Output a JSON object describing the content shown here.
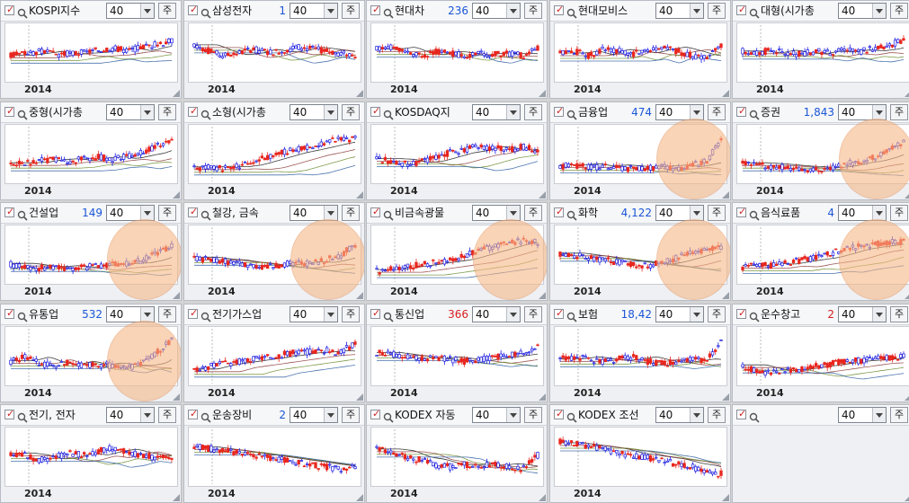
{
  "ui": {
    "select_value": "40",
    "button_label": "주",
    "year_label": "2014",
    "accent_red": "#e8261e",
    "accent_blue": "#1a1ae0",
    "highlight_fill": "#f6b887"
  },
  "panels": [
    {
      "name": "KOSPI지수",
      "value": "",
      "value_color": "#1a56d6",
      "highlight": false,
      "seed": 3,
      "trend": [
        0.45,
        0.5,
        0.55,
        0.48,
        0.5,
        0.52,
        0.58,
        0.62,
        0.55,
        0.65,
        0.7,
        0.78
      ]
    },
    {
      "name": "삼성전자",
      "value": "1",
      "value_color": "#1a56d6",
      "highlight": false,
      "seed": 7,
      "trend": [
        0.7,
        0.55,
        0.45,
        0.5,
        0.6,
        0.52,
        0.55,
        0.65,
        0.6,
        0.55,
        0.5,
        0.48
      ]
    },
    {
      "name": "현대차",
      "value": "236",
      "value_color": "#1a56d6",
      "highlight": false,
      "seed": 11,
      "trend": [
        0.6,
        0.65,
        0.5,
        0.45,
        0.55,
        0.5,
        0.45,
        0.5,
        0.48,
        0.5,
        0.45,
        0.6
      ]
    },
    {
      "name": "현대모비스",
      "value": "",
      "value_color": "#1a56d6",
      "highlight": false,
      "seed": 13,
      "trend": [
        0.5,
        0.55,
        0.45,
        0.6,
        0.55,
        0.5,
        0.6,
        0.65,
        0.55,
        0.45,
        0.4,
        0.65
      ]
    },
    {
      "name": "대형(시가총",
      "value": "",
      "value_color": "#1a56d6",
      "highlight": false,
      "seed": 17,
      "trend": [
        0.55,
        0.5,
        0.58,
        0.5,
        0.48,
        0.55,
        0.52,
        0.58,
        0.55,
        0.6,
        0.68,
        0.78
      ]
    },
    {
      "name": "중형(시가총",
      "value": "",
      "value_color": "#1a56d6",
      "highlight": false,
      "seed": 19,
      "trend": [
        0.3,
        0.32,
        0.38,
        0.4,
        0.35,
        0.42,
        0.45,
        0.4,
        0.48,
        0.55,
        0.7,
        0.8
      ]
    },
    {
      "name": "소형(시가총",
      "value": "",
      "value_color": "#1a56d6",
      "highlight": false,
      "seed": 23,
      "trend": [
        0.2,
        0.22,
        0.2,
        0.25,
        0.35,
        0.45,
        0.55,
        0.62,
        0.7,
        0.78,
        0.85,
        0.85
      ]
    },
    {
      "name": "KOSDAQ지",
      "value": "",
      "value_color": "#1a56d6",
      "highlight": false,
      "seed": 29,
      "trend": [
        0.4,
        0.38,
        0.3,
        0.35,
        0.45,
        0.55,
        0.6,
        0.7,
        0.65,
        0.6,
        0.68,
        0.6
      ]
    },
    {
      "name": "금융업",
      "value": "474",
      "value_color": "#1a56d6",
      "highlight": true,
      "seed": 31,
      "trend": [
        0.25,
        0.28,
        0.22,
        0.25,
        0.22,
        0.2,
        0.22,
        0.25,
        0.2,
        0.28,
        0.35,
        0.85
      ]
    },
    {
      "name": "증권",
      "value": "1,843",
      "value_color": "#1a56d6",
      "highlight": true,
      "seed": 37,
      "trend": [
        0.3,
        0.28,
        0.25,
        0.22,
        0.2,
        0.18,
        0.22,
        0.3,
        0.35,
        0.45,
        0.6,
        0.8
      ]
    },
    {
      "name": "건설업",
      "value": "149",
      "value_color": "#1a56d6",
      "highlight": true,
      "seed": 41,
      "trend": [
        0.3,
        0.25,
        0.22,
        0.25,
        0.2,
        0.25,
        0.28,
        0.3,
        0.32,
        0.4,
        0.55,
        0.7
      ]
    },
    {
      "name": "철강, 금속",
      "value": "",
      "value_color": "#1a56d6",
      "highlight": true,
      "seed": 43,
      "trend": [
        0.45,
        0.4,
        0.38,
        0.32,
        0.28,
        0.25,
        0.3,
        0.35,
        0.32,
        0.4,
        0.5,
        0.75
      ]
    },
    {
      "name": "비금속광물",
      "value": "",
      "value_color": "#1a56d6",
      "highlight": true,
      "seed": 47,
      "trend": [
        0.15,
        0.2,
        0.25,
        0.3,
        0.35,
        0.4,
        0.5,
        0.6,
        0.7,
        0.8,
        0.82,
        0.78
      ]
    },
    {
      "name": "화학",
      "value": "4,122",
      "value_color": "#1a56d6",
      "highlight": true,
      "seed": 53,
      "trend": [
        0.55,
        0.5,
        0.45,
        0.4,
        0.35,
        0.3,
        0.28,
        0.35,
        0.45,
        0.55,
        0.65,
        0.7
      ]
    },
    {
      "name": "음식료품",
      "value": "4",
      "value_color": "#1a56d6",
      "highlight": true,
      "seed": 59,
      "trend": [
        0.25,
        0.3,
        0.28,
        0.35,
        0.4,
        0.45,
        0.55,
        0.65,
        0.7,
        0.75,
        0.8,
        0.8
      ]
    },
    {
      "name": "유통업",
      "value": "532",
      "value_color": "#1a56d6",
      "highlight": true,
      "seed": 61,
      "trend": [
        0.4,
        0.5,
        0.35,
        0.3,
        0.4,
        0.3,
        0.35,
        0.3,
        0.28,
        0.35,
        0.6,
        0.85
      ]
    },
    {
      "name": "전기가스업",
      "value": "",
      "value_color": "#1a56d6",
      "highlight": false,
      "seed": 67,
      "trend": [
        0.2,
        0.3,
        0.35,
        0.4,
        0.45,
        0.5,
        0.55,
        0.6,
        0.62,
        0.65,
        0.6,
        0.8
      ]
    },
    {
      "name": "통신업",
      "value": "366",
      "value_color": "#d62020",
      "highlight": false,
      "seed": 71,
      "trend": [
        0.6,
        0.55,
        0.5,
        0.45,
        0.5,
        0.45,
        0.4,
        0.45,
        0.5,
        0.55,
        0.6,
        0.75
      ]
    },
    {
      "name": "보험",
      "value": "18,42",
      "value_color": "#1a56d6",
      "highlight": false,
      "seed": 73,
      "trend": [
        0.45,
        0.5,
        0.45,
        0.4,
        0.45,
        0.5,
        0.4,
        0.35,
        0.4,
        0.45,
        0.4,
        0.85
      ]
    },
    {
      "name": "운수창고",
      "value": "2",
      "value_color": "#d62020",
      "highlight": false,
      "seed": 79,
      "trend": [
        0.3,
        0.2,
        0.15,
        0.2,
        0.25,
        0.3,
        0.35,
        0.4,
        0.42,
        0.45,
        0.48,
        0.5
      ]
    },
    {
      "name": "전기, 전자",
      "value": "",
      "value_color": "#1a56d6",
      "highlight": false,
      "seed": 83,
      "trend": [
        0.6,
        0.55,
        0.45,
        0.5,
        0.6,
        0.55,
        0.65,
        0.7,
        0.6,
        0.55,
        0.5,
        0.5
      ]
    },
    {
      "name": "운송장비",
      "value": "2",
      "value_color": "#1a56d6",
      "highlight": false,
      "seed": 89,
      "trend": [
        0.75,
        0.7,
        0.65,
        0.6,
        0.55,
        0.5,
        0.45,
        0.4,
        0.35,
        0.3,
        0.25,
        0.3
      ]
    },
    {
      "name": "KODEX 자동",
      "value": "",
      "value_color": "#1a56d6",
      "highlight": false,
      "seed": 97,
      "trend": [
        0.7,
        0.65,
        0.5,
        0.45,
        0.35,
        0.3,
        0.35,
        0.3,
        0.35,
        0.3,
        0.25,
        0.55
      ]
    },
    {
      "name": "KODEX 조선",
      "value": "",
      "value_color": "#1a56d6",
      "highlight": false,
      "seed": 101,
      "trend": [
        0.85,
        0.8,
        0.75,
        0.7,
        0.6,
        0.55,
        0.5,
        0.45,
        0.35,
        0.3,
        0.2,
        0.15
      ]
    },
    {
      "name": "",
      "value": "",
      "value_color": "#1a56d6",
      "highlight": false,
      "empty": true,
      "seed": 0,
      "trend": []
    }
  ]
}
